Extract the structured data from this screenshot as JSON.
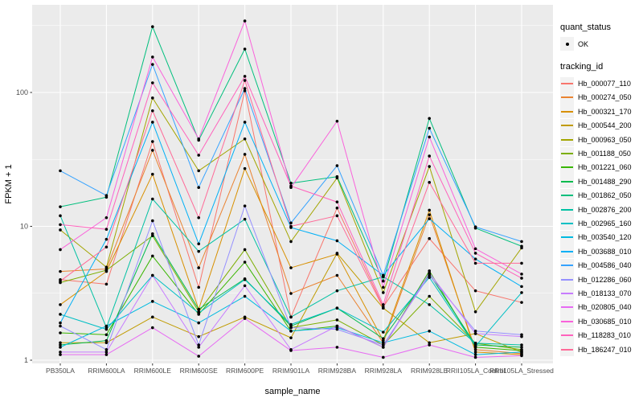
{
  "figure": {
    "background": "#FFFFFF",
    "panel_background": "#EBEBEB",
    "grid_color": "#FFFFFF",
    "axis_text_color": "#4D4D4D",
    "tick_mark_color": "#333333",
    "point_color": "#000000",
    "legend_key_fill": "#F2F2F2"
  },
  "axes": {
    "x_title": "sample_name",
    "y_title": "FPKM + 1",
    "y_tick_labels": [
      "1",
      "10",
      "100"
    ],
    "y_tick_values": [
      1,
      10,
      100
    ],
    "y_minor_values": [
      3.1623,
      31.623,
      316.23
    ]
  },
  "legend": {
    "quant_title": "quant_status",
    "quant_items": [
      {
        "label": "OK"
      }
    ],
    "tracking_title": "tracking_id"
  },
  "chart_data": {
    "type": "line",
    "title": "",
    "xlabel": "sample_name",
    "ylabel": "FPKM + 1",
    "y_scale": "log10",
    "ylim": [
      0.95,
      450
    ],
    "grid": "on",
    "legend_position": "right",
    "categories": [
      "PB350LA",
      "RRIM600LA",
      "RRIM600LE",
      "RRIM600SE",
      "RRIM600PE",
      "RRIM901LA",
      "RRIM928BA",
      "RRIM928LA",
      "RRIM928LE",
      "RRII105LA_Control",
      "RRII105LA_Stressed"
    ],
    "series": [
      {
        "name": "Hb_000077_110",
        "color": "#F8766D",
        "values": [
          4.0,
          3.7,
          43,
          3.5,
          103,
          2.1,
          13.7,
          2.5,
          8.1,
          3.3,
          2.7
        ]
      },
      {
        "name": "Hb_000274_050",
        "color": "#EA8331",
        "values": [
          4.6,
          4.8,
          37,
          4.9,
          34.5,
          3.15,
          4.3,
          1.35,
          12.2,
          1.2,
          1.12
        ]
      },
      {
        "name": "Hb_000321_170",
        "color": "#D89000",
        "values": [
          2.6,
          4.6,
          24.5,
          2.4,
          27,
          4.9,
          6.2,
          1.4,
          13.2,
          1.15,
          1.1
        ]
      },
      {
        "name": "Hb_000544_200",
        "color": "#C09B00",
        "values": [
          1.35,
          1.35,
          2.1,
          1.5,
          2.1,
          1.47,
          6.3,
          2.45,
          1.35,
          1.58,
          1.15
        ]
      },
      {
        "name": "Hb_000963_050",
        "color": "#A3A500",
        "values": [
          9.4,
          4.95,
          91,
          26,
          45,
          7.7,
          23,
          3.2,
          28,
          2.3,
          6.9
        ]
      },
      {
        "name": "Hb_001188_050",
        "color": "#7CAE00",
        "values": [
          3.8,
          4.7,
          8.5,
          2.3,
          6.7,
          1.75,
          2.0,
          1.3,
          3.0,
          1.34,
          1.2
        ]
      },
      {
        "name": "Hb_001221_060",
        "color": "#39B600",
        "values": [
          1.6,
          1.55,
          6.0,
          2.2,
          5.4,
          1.65,
          1.8,
          1.25,
          4.65,
          1.25,
          1.18
        ]
      },
      {
        "name": "Hb_001488_290",
        "color": "#00BB4E",
        "values": [
          1.3,
          1.4,
          8.8,
          2.4,
          4.05,
          1.8,
          2.45,
          1.45,
          4.4,
          1.3,
          1.25
        ]
      },
      {
        "name": "Hb_001862_050",
        "color": "#00BF7D",
        "values": [
          14,
          16.5,
          310,
          44,
          211,
          21,
          23.5,
          3.9,
          64,
          9.7,
          7.1
        ]
      },
      {
        "name": "Hb_002876_200",
        "color": "#00C1A3",
        "values": [
          12,
          1.75,
          16,
          6.5,
          11.3,
          2.1,
          3.3,
          4.2,
          2.6,
          1.34,
          1.3
        ]
      },
      {
        "name": "Hb_002965_160",
        "color": "#00BFC4",
        "values": [
          2.2,
          1.7,
          4.3,
          2.25,
          4.0,
          1.85,
          2.45,
          1.62,
          4.15,
          1.27,
          3.2
        ]
      },
      {
        "name": "Hb_003540_120",
        "color": "#00BAE0",
        "values": [
          1.25,
          1.8,
          2.75,
          1.9,
          3.0,
          1.65,
          1.75,
          1.35,
          1.65,
          1.1,
          1.15
        ]
      },
      {
        "name": "Hb_003688_010",
        "color": "#00B0F6",
        "values": [
          1.9,
          8.0,
          60,
          7.4,
          60,
          9.8,
          7.8,
          4.3,
          11.4,
          5.7,
          3.55
        ]
      },
      {
        "name": "Hb_004586_040",
        "color": "#35A2FF",
        "values": [
          26,
          17,
          162,
          19.5,
          107,
          10.6,
          28.4,
          4.3,
          54,
          9.9,
          7.7
        ]
      },
      {
        "name": "Hb_012286_060",
        "color": "#9590FF",
        "values": [
          1.8,
          1.2,
          11,
          1.3,
          14.2,
          1.75,
          1.7,
          1.3,
          4.3,
          1.65,
          1.55
        ]
      },
      {
        "name": "Hb_018133_070",
        "color": "#C77CFF",
        "values": [
          1.15,
          1.15,
          4.3,
          1.25,
          3.6,
          1.2,
          1.8,
          1.25,
          4.5,
          1.58,
          1.5
        ]
      },
      {
        "name": "Hb_020805_040",
        "color": "#E76BF3",
        "values": [
          1.1,
          1.1,
          1.75,
          1.07,
          2.05,
          1.18,
          1.25,
          1.05,
          1.3,
          1.05,
          1.08
        ]
      },
      {
        "name": "Hb_030685_010",
        "color": "#FA62DB",
        "values": [
          6.7,
          11.6,
          184,
          45,
          342,
          19.5,
          61,
          3.5,
          46.5,
          6.8,
          4.4
        ]
      },
      {
        "name": "Hb_118283_010",
        "color": "#FF62BC",
        "values": [
          10.3,
          9.5,
          118,
          34,
          132,
          20,
          15.2,
          2.6,
          33.5,
          6.3,
          4.1
        ]
      },
      {
        "name": "Hb_186247_010",
        "color": "#FF6A98",
        "values": [
          3.9,
          7.0,
          73,
          11.6,
          123,
          10,
          12,
          2.45,
          21.3,
          5.3,
          5.3
        ]
      }
    ]
  }
}
